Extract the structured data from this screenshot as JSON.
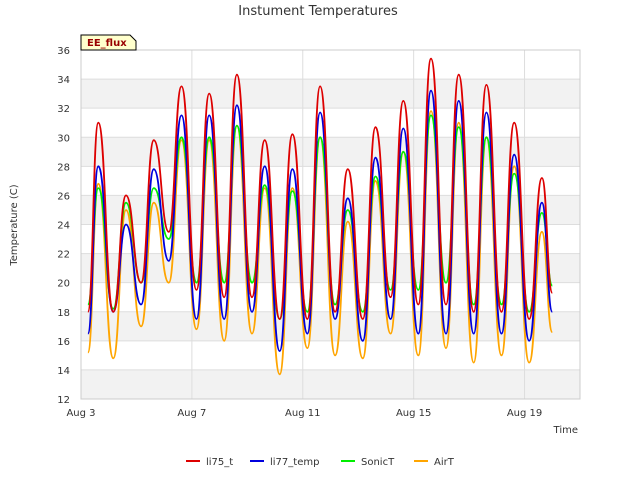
{
  "chart_data": {
    "type": "line",
    "title": "Instument Temperatures",
    "xlabel": "Time",
    "ylabel": "Temperature (C)",
    "xlim": [
      "2023-08-03",
      "2023-08-21"
    ],
    "ylim": [
      12,
      36
    ],
    "yticks": [
      12,
      14,
      16,
      18,
      20,
      22,
      24,
      26,
      28,
      30,
      32,
      34,
      36
    ],
    "xticks": [
      {
        "date": "2023-08-03",
        "label": "Aug 3"
      },
      {
        "date": "2023-08-07",
        "label": "Aug 7"
      },
      {
        "date": "2023-08-11",
        "label": "Aug 11"
      },
      {
        "date": "2023-08-15",
        "label": "Aug 15"
      },
      {
        "date": "2023-08-19",
        "label": "Aug 19"
      }
    ],
    "grid": true,
    "legend_position": "bottom",
    "annotation": "EE_flux",
    "series": [
      {
        "name": "li75_t",
        "color": "#dd0000",
        "points": [
          [
            "2023-08-03T06:00",
            18.0
          ],
          [
            "2023-08-03T15:00",
            31.0
          ],
          [
            "2023-08-04T04:00",
            18.0
          ],
          [
            "2023-08-04T15:00",
            26.0
          ],
          [
            "2023-08-05T04:00",
            20.0
          ],
          [
            "2023-08-05T15:00",
            29.8
          ],
          [
            "2023-08-06T04:00",
            23.5
          ],
          [
            "2023-08-06T15:00",
            33.5
          ],
          [
            "2023-08-07T04:00",
            19.5
          ],
          [
            "2023-08-07T15:00",
            33.0
          ],
          [
            "2023-08-08T04:00",
            19.0
          ],
          [
            "2023-08-08T15:00",
            34.3
          ],
          [
            "2023-08-09T04:00",
            19.0
          ],
          [
            "2023-08-09T15:00",
            29.8
          ],
          [
            "2023-08-10T04:00",
            17.5
          ],
          [
            "2023-08-10T15:00",
            30.2
          ],
          [
            "2023-08-11T04:00",
            17.5
          ],
          [
            "2023-08-11T15:00",
            33.5
          ],
          [
            "2023-08-12T04:00",
            18.0
          ],
          [
            "2023-08-12T15:00",
            27.8
          ],
          [
            "2023-08-13T04:00",
            17.5
          ],
          [
            "2023-08-13T15:00",
            30.7
          ],
          [
            "2023-08-14T04:00",
            19.0
          ],
          [
            "2023-08-14T15:00",
            32.5
          ],
          [
            "2023-08-15T04:00",
            18.5
          ],
          [
            "2023-08-15T15:00",
            35.4
          ],
          [
            "2023-08-16T04:00",
            18.5
          ],
          [
            "2023-08-16T15:00",
            34.3
          ],
          [
            "2023-08-17T04:00",
            18.0
          ],
          [
            "2023-08-17T15:00",
            33.6
          ],
          [
            "2023-08-18T04:00",
            18.0
          ],
          [
            "2023-08-18T15:00",
            31.0
          ],
          [
            "2023-08-19T04:00",
            17.5
          ],
          [
            "2023-08-19T15:00",
            27.2
          ],
          [
            "2023-08-20T00:00",
            19.3
          ]
        ]
      },
      {
        "name": "li77_temp",
        "color": "#0000dd",
        "points": [
          [
            "2023-08-03T06:00",
            16.5
          ],
          [
            "2023-08-03T15:00",
            28.0
          ],
          [
            "2023-08-04T04:00",
            18.0
          ],
          [
            "2023-08-04T15:00",
            24.0
          ],
          [
            "2023-08-05T04:00",
            18.5
          ],
          [
            "2023-08-05T15:00",
            27.8
          ],
          [
            "2023-08-06T04:00",
            21.5
          ],
          [
            "2023-08-06T15:00",
            31.5
          ],
          [
            "2023-08-07T04:00",
            17.5
          ],
          [
            "2023-08-07T15:00",
            31.5
          ],
          [
            "2023-08-08T04:00",
            17.5
          ],
          [
            "2023-08-08T15:00",
            32.2
          ],
          [
            "2023-08-09T04:00",
            18.0
          ],
          [
            "2023-08-09T15:00",
            28.0
          ],
          [
            "2023-08-10T04:00",
            15.3
          ],
          [
            "2023-08-10T15:00",
            27.8
          ],
          [
            "2023-08-11T04:00",
            16.5
          ],
          [
            "2023-08-11T15:00",
            31.7
          ],
          [
            "2023-08-12T04:00",
            17.5
          ],
          [
            "2023-08-12T15:00",
            25.8
          ],
          [
            "2023-08-13T04:00",
            16.0
          ],
          [
            "2023-08-13T15:00",
            28.6
          ],
          [
            "2023-08-14T04:00",
            17.5
          ],
          [
            "2023-08-14T15:00",
            30.6
          ],
          [
            "2023-08-15T04:00",
            16.5
          ],
          [
            "2023-08-15T15:00",
            33.2
          ],
          [
            "2023-08-16T04:00",
            16.5
          ],
          [
            "2023-08-16T15:00",
            32.5
          ],
          [
            "2023-08-17T04:00",
            16.5
          ],
          [
            "2023-08-17T15:00",
            31.7
          ],
          [
            "2023-08-18T04:00",
            16.5
          ],
          [
            "2023-08-18T15:00",
            28.8
          ],
          [
            "2023-08-19T04:00",
            16.0
          ],
          [
            "2023-08-19T15:00",
            25.5
          ],
          [
            "2023-08-20T00:00",
            18.0
          ]
        ]
      },
      {
        "name": "SonicT",
        "color": "#00ee00",
        "points": [
          [
            "2023-08-03T06:00",
            18.5
          ],
          [
            "2023-08-03T15:00",
            26.5
          ],
          [
            "2023-08-04T04:00",
            18.2
          ],
          [
            "2023-08-04T15:00",
            25.5
          ],
          [
            "2023-08-05T04:00",
            20.0
          ],
          [
            "2023-08-05T15:00",
            26.5
          ],
          [
            "2023-08-06T04:00",
            23.0
          ],
          [
            "2023-08-06T15:00",
            30.0
          ],
          [
            "2023-08-07T04:00",
            20.0
          ],
          [
            "2023-08-07T15:00",
            30.0
          ],
          [
            "2023-08-08T04:00",
            20.0
          ],
          [
            "2023-08-08T15:00",
            30.8
          ],
          [
            "2023-08-09T04:00",
            20.0
          ],
          [
            "2023-08-09T15:00",
            26.7
          ],
          [
            "2023-08-10T04:00",
            17.5
          ],
          [
            "2023-08-10T15:00",
            26.3
          ],
          [
            "2023-08-11T04:00",
            18.0
          ],
          [
            "2023-08-11T15:00",
            30.0
          ],
          [
            "2023-08-12T04:00",
            18.5
          ],
          [
            "2023-08-12T15:00",
            25.0
          ],
          [
            "2023-08-13T04:00",
            18.0
          ],
          [
            "2023-08-13T15:00",
            27.3
          ],
          [
            "2023-08-14T04:00",
            19.5
          ],
          [
            "2023-08-14T15:00",
            29.0
          ],
          [
            "2023-08-15T04:00",
            19.5
          ],
          [
            "2023-08-15T15:00",
            31.5
          ],
          [
            "2023-08-16T04:00",
            20.0
          ],
          [
            "2023-08-16T15:00",
            30.7
          ],
          [
            "2023-08-17T04:00",
            18.5
          ],
          [
            "2023-08-17T15:00",
            30.0
          ],
          [
            "2023-08-18T04:00",
            18.5
          ],
          [
            "2023-08-18T15:00",
            27.5
          ],
          [
            "2023-08-19T04:00",
            18.0
          ],
          [
            "2023-08-19T15:00",
            24.8
          ],
          [
            "2023-08-20T00:00",
            19.8
          ]
        ]
      },
      {
        "name": "AirT",
        "color": "#ffa500",
        "points": [
          [
            "2023-08-03T06:00",
            15.2
          ],
          [
            "2023-08-03T15:00",
            26.8
          ],
          [
            "2023-08-04T04:00",
            14.8
          ],
          [
            "2023-08-04T15:00",
            25.0
          ],
          [
            "2023-08-05T04:00",
            17.0
          ],
          [
            "2023-08-05T15:00",
            25.5
          ],
          [
            "2023-08-06T04:00",
            20.0
          ],
          [
            "2023-08-06T15:00",
            29.8
          ],
          [
            "2023-08-07T04:00",
            16.8
          ],
          [
            "2023-08-07T15:00",
            29.8
          ],
          [
            "2023-08-08T04:00",
            16.0
          ],
          [
            "2023-08-08T15:00",
            30.8
          ],
          [
            "2023-08-09T04:00",
            16.5
          ],
          [
            "2023-08-09T15:00",
            26.5
          ],
          [
            "2023-08-10T04:00",
            13.7
          ],
          [
            "2023-08-10T15:00",
            26.5
          ],
          [
            "2023-08-11T04:00",
            15.5
          ],
          [
            "2023-08-11T15:00",
            30.0
          ],
          [
            "2023-08-12T04:00",
            15.0
          ],
          [
            "2023-08-12T15:00",
            24.2
          ],
          [
            "2023-08-13T04:00",
            14.8
          ],
          [
            "2023-08-13T15:00",
            27.0
          ],
          [
            "2023-08-14T04:00",
            16.5
          ],
          [
            "2023-08-14T15:00",
            29.0
          ],
          [
            "2023-08-15T04:00",
            15.0
          ],
          [
            "2023-08-15T15:00",
            31.8
          ],
          [
            "2023-08-16T04:00",
            15.5
          ],
          [
            "2023-08-16T15:00",
            31.0
          ],
          [
            "2023-08-17T04:00",
            14.5
          ],
          [
            "2023-08-17T15:00",
            30.0
          ],
          [
            "2023-08-18T04:00",
            15.0
          ],
          [
            "2023-08-18T15:00",
            28.0
          ],
          [
            "2023-08-19T04:00",
            14.5
          ],
          [
            "2023-08-19T15:00",
            23.5
          ],
          [
            "2023-08-20T00:00",
            16.6
          ]
        ]
      }
    ]
  }
}
